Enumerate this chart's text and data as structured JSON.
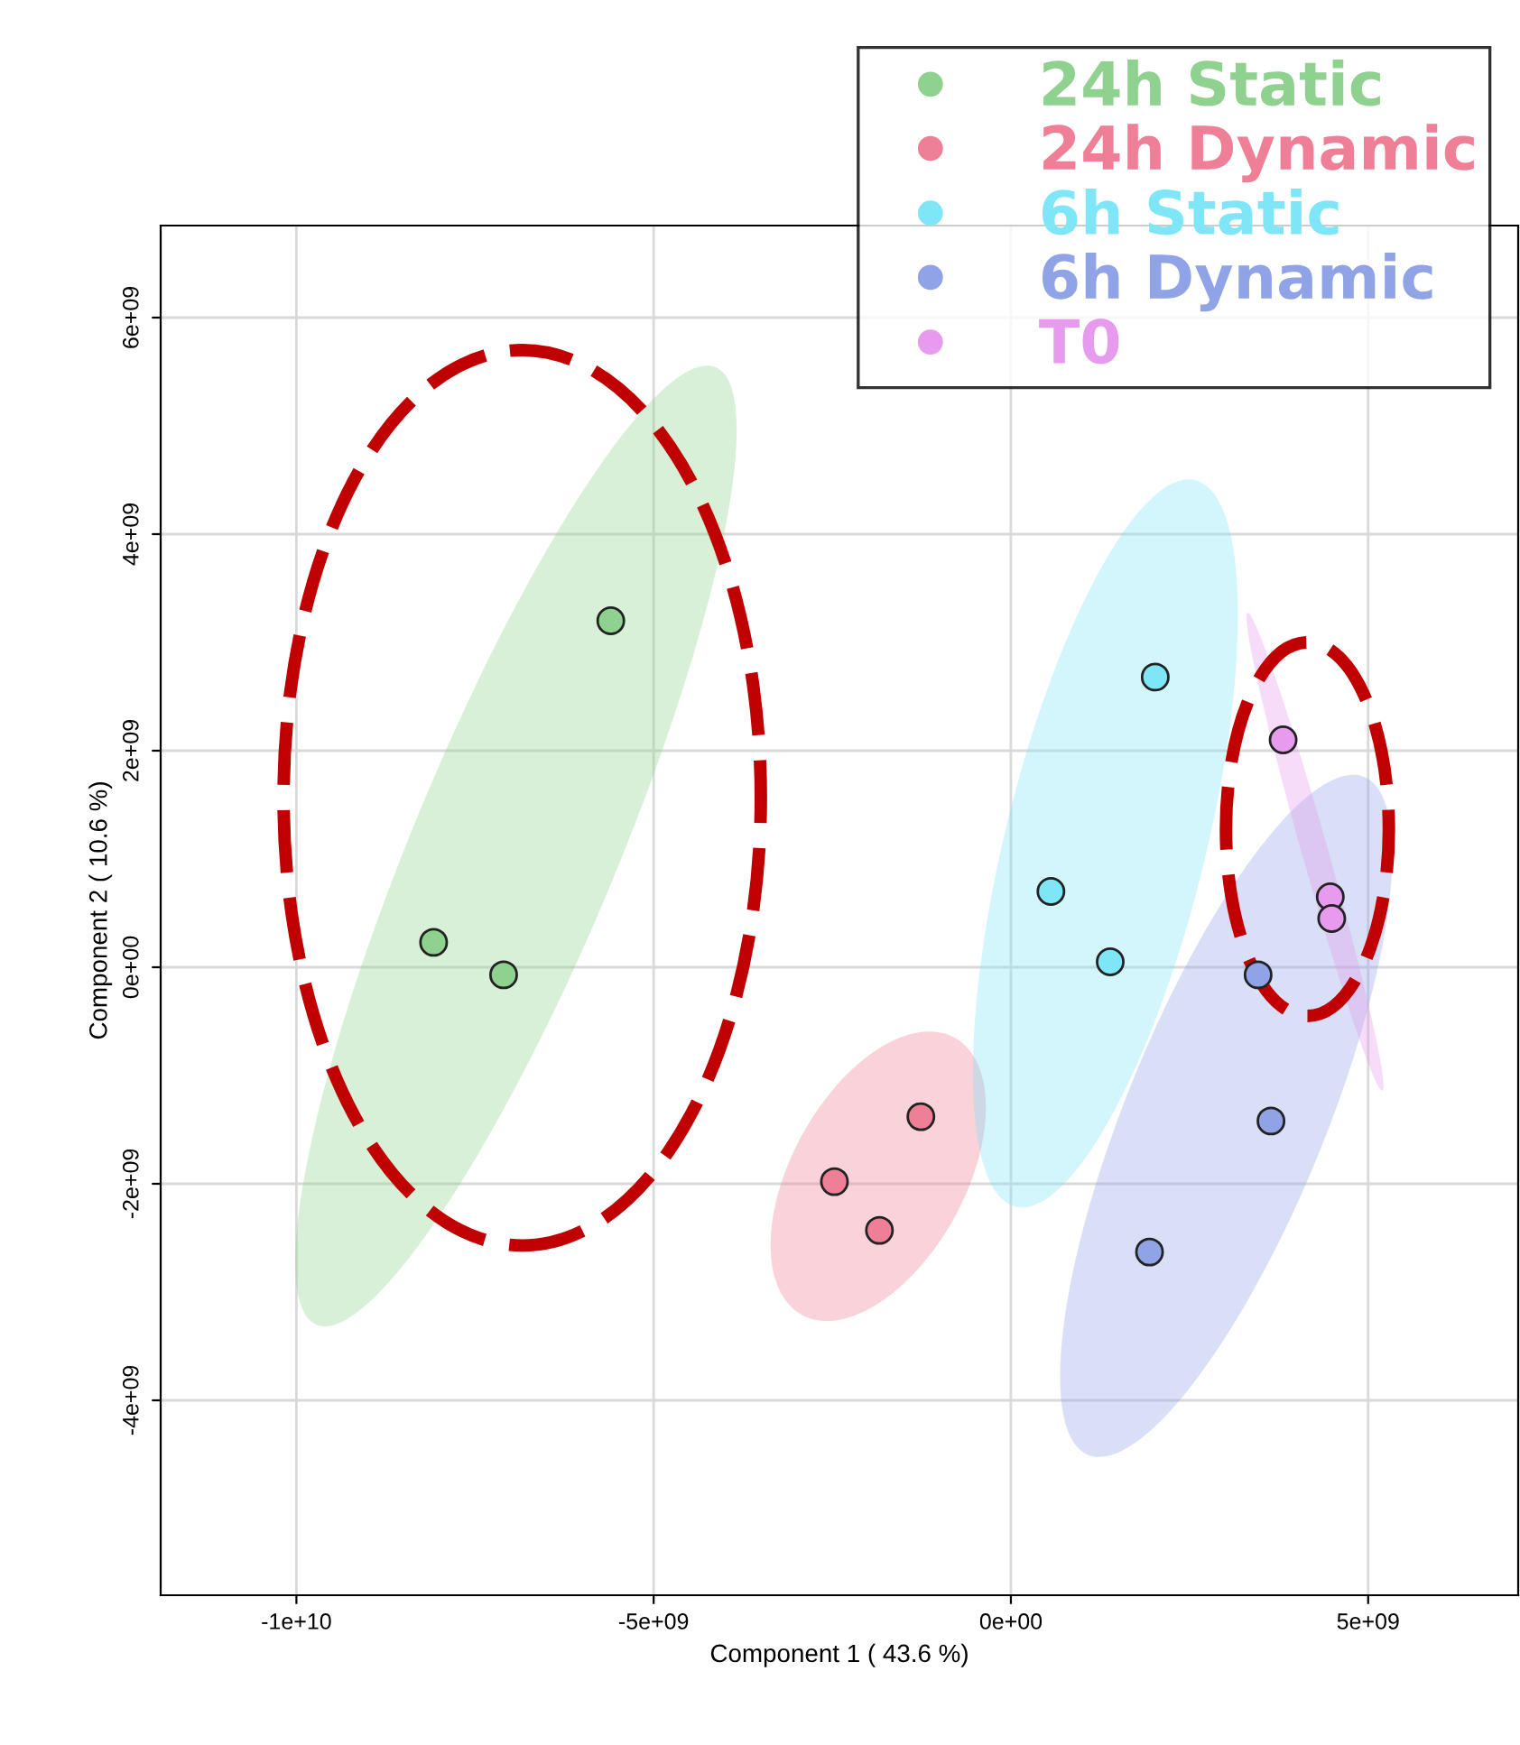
{
  "chart_data": {
    "type": "scatter",
    "xlabel": "Component 1 ( 43.6 %)",
    "ylabel": "Component 2 ( 10.6 %)",
    "xlim": [
      -11900000000,
      7100000000
    ],
    "ylim": [
      -5800000000,
      6850000000
    ],
    "xticks": [
      {
        "value": -10000000000,
        "label": "-1e+10"
      },
      {
        "value": -5000000000,
        "label": "-5e+09"
      },
      {
        "value": 0,
        "label": "0e+00"
      },
      {
        "value": 5000000000,
        "label": "5e+09"
      }
    ],
    "yticks": [
      {
        "value": -4000000000,
        "label": "-4e+09"
      },
      {
        "value": -2000000000,
        "label": "-2e+09"
      },
      {
        "value": 0,
        "label": "0e+00"
      },
      {
        "value": 2000000000,
        "label": "2e+09"
      },
      {
        "value": 4000000000,
        "label": "4e+09"
      },
      {
        "value": 6000000000,
        "label": "6e+09"
      }
    ],
    "grid": true,
    "legend": "top right",
    "marker": "circle",
    "series": [
      {
        "name": "24h Static",
        "color": "#8fd18f",
        "x": [
          -5600000000,
          -8080000000,
          -7100000000
        ],
        "values": [
          3200000000,
          230000000,
          -70000000
        ]
      },
      {
        "name": "24h Dynamic",
        "color": "#ee7f96",
        "x": [
          -1260000000,
          -2470000000,
          -1840000000
        ],
        "values": [
          -1380000000,
          -1980000000,
          -2430000000
        ]
      },
      {
        "name": "6h Static",
        "color": "#7fe6f7",
        "x": [
          2020000000,
          560000000,
          1390000000
        ],
        "values": [
          2680000000,
          700000000,
          50000000
        ]
      },
      {
        "name": "6h Dynamic",
        "color": "#8fa3e6",
        "x": [
          3460000000,
          3640000000,
          1940000000
        ],
        "values": [
          -70000000,
          -1420000000,
          -2630000000
        ]
      },
      {
        "name": "T0",
        "color": "#e69bef",
        "x": [
          3810000000,
          4470000000,
          4490000000
        ],
        "values": [
          2100000000,
          650000000,
          450000000
        ]
      }
    ]
  }
}
